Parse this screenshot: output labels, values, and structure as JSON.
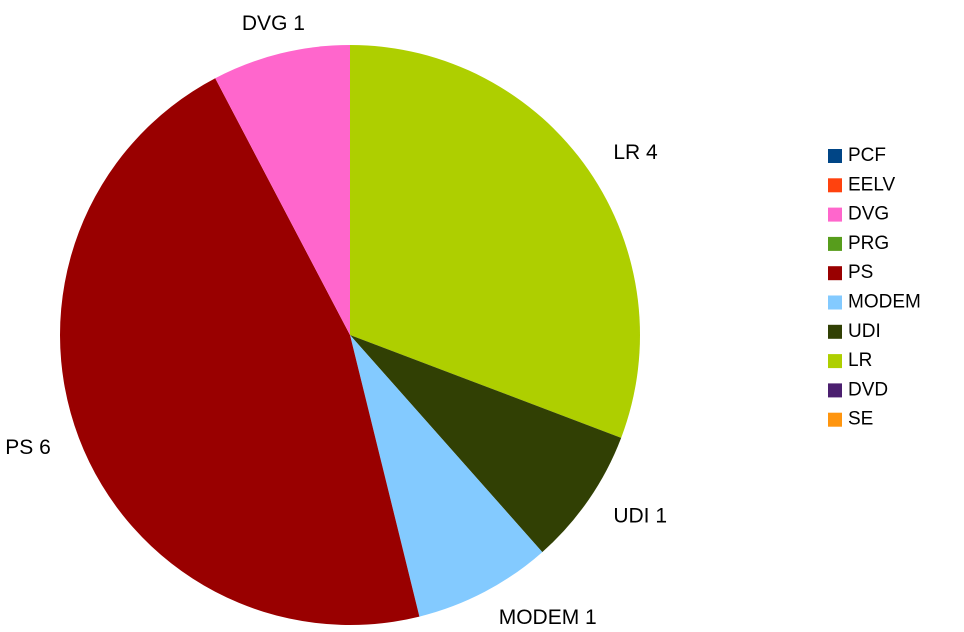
{
  "chart_data": {
    "type": "pie",
    "categories": [
      "PCF",
      "EELV",
      "DVG",
      "PRG",
      "PS",
      "MODEM",
      "UDI",
      "LR",
      "DVD",
      "SE"
    ],
    "values": [
      0,
      0,
      1,
      0,
      6,
      1,
      1,
      4,
      0,
      0
    ],
    "value_labels": [
      null,
      null,
      "DVG 1",
      null,
      "PS 6",
      "MODEM 1",
      "UDI 1",
      "LR 4",
      null,
      null
    ],
    "colors": [
      "#004586",
      "#ff420e",
      "#ff66cc",
      "#579d1c",
      "#990000",
      "#83caff",
      "#314004",
      "#aecf00",
      "#4b1f6f",
      "#ff950e"
    ],
    "legend": "right"
  }
}
